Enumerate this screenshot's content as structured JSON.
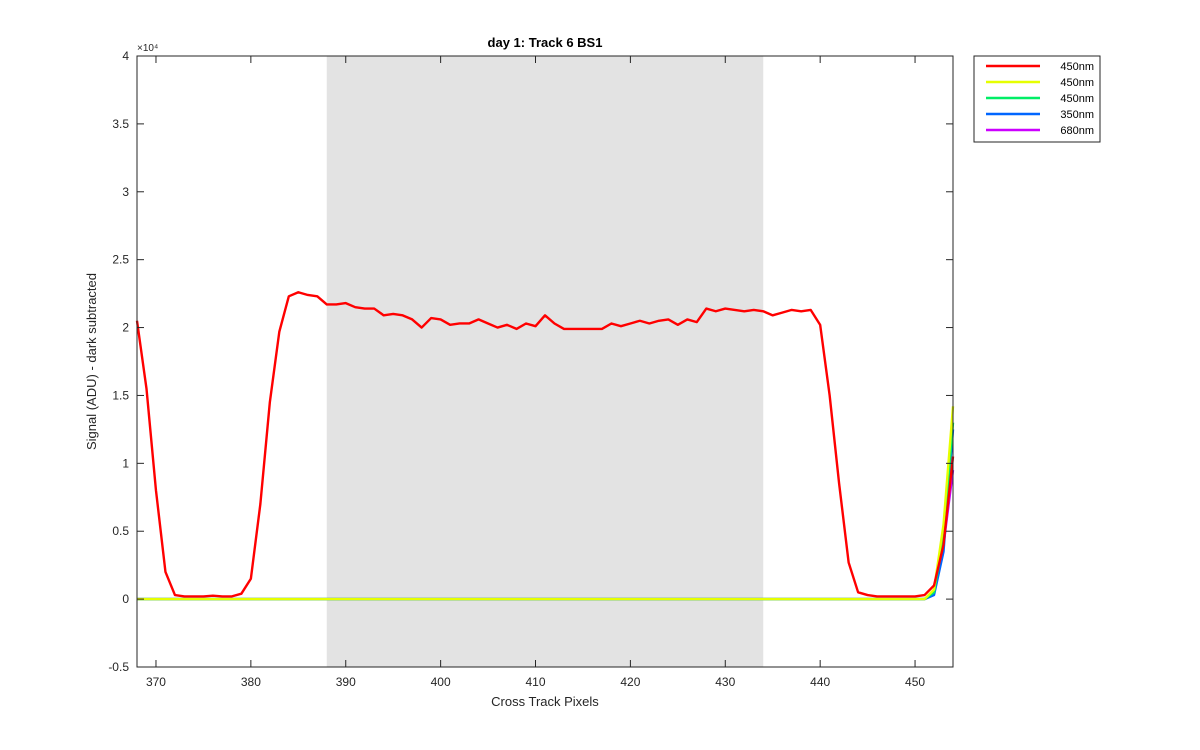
{
  "chart_data": {
    "type": "line",
    "title": "day 1: Track 6  BS1",
    "xlabel": "Cross Track Pixels",
    "ylabel": "Signal (ADU) - dark subtracted",
    "y_exponent_label": "×10⁴",
    "y_scale_factor": 10000,
    "xlim": [
      368,
      454
    ],
    "ylim": [
      -0.5,
      4
    ],
    "x_ticks": [
      370,
      380,
      390,
      400,
      410,
      420,
      430,
      440,
      450
    ],
    "y_ticks": [
      -0.5,
      0,
      0.5,
      1,
      1.5,
      2,
      2.5,
      3,
      3.5,
      4
    ],
    "y_tick_labels": [
      "-0.5",
      "0",
      "0.5",
      "1",
      "1.5",
      "2",
      "2.5",
      "3",
      "3.5",
      "4"
    ],
    "shaded_region": {
      "x_start": 388,
      "x_end": 434,
      "color": "#e3e3e3"
    },
    "grid": false,
    "legend_position": "outside-top-right",
    "series": [
      {
        "name": "450nm",
        "color": "#ff0000",
        "x": [
          368,
          369,
          370,
          371,
          372,
          373,
          374,
          375,
          376,
          377,
          378,
          379,
          380,
          381,
          382,
          383,
          384,
          385,
          386,
          387,
          388,
          389,
          390,
          391,
          392,
          393,
          394,
          395,
          396,
          397,
          398,
          399,
          400,
          401,
          402,
          403,
          404,
          405,
          406,
          407,
          408,
          409,
          410,
          411,
          412,
          413,
          414,
          415,
          416,
          417,
          418,
          419,
          420,
          421,
          422,
          423,
          424,
          425,
          426,
          427,
          428,
          429,
          430,
          431,
          432,
          433,
          434,
          435,
          436,
          437,
          438,
          439,
          440,
          441,
          442,
          443,
          444,
          445,
          446,
          447,
          448,
          449,
          450,
          451,
          452,
          453,
          454
        ],
        "y": [
          2.05,
          1.55,
          0.8,
          0.2,
          0.03,
          0.02,
          0.02,
          0.02,
          0.025,
          0.02,
          0.02,
          0.04,
          0.15,
          0.7,
          1.45,
          1.97,
          2.23,
          2.26,
          2.24,
          2.23,
          2.17,
          2.17,
          2.18,
          2.15,
          2.14,
          2.14,
          2.09,
          2.1,
          2.09,
          2.06,
          2.0,
          2.07,
          2.06,
          2.02,
          2.03,
          2.03,
          2.06,
          2.03,
          2.0,
          2.02,
          1.99,
          2.03,
          2.01,
          2.09,
          2.03,
          1.99,
          1.99,
          1.99,
          1.99,
          1.99,
          2.03,
          2.01,
          2.03,
          2.05,
          2.03,
          2.05,
          2.06,
          2.02,
          2.06,
          2.04,
          2.14,
          2.12,
          2.14,
          2.13,
          2.12,
          2.13,
          2.12,
          2.09,
          2.11,
          2.13,
          2.12,
          2.13,
          2.02,
          1.5,
          0.85,
          0.27,
          0.05,
          0.03,
          0.02,
          0.02,
          0.02,
          0.02,
          0.02,
          0.03,
          0.1,
          0.4,
          1.05
        ]
      },
      {
        "name": "450nm",
        "color": "#e6ff00",
        "x": [
          368,
          380,
          390,
          400,
          410,
          420,
          430,
          440,
          450,
          451,
          452,
          453,
          454
        ],
        "y": [
          0,
          0,
          0,
          0,
          0,
          0,
          0,
          0,
          0,
          0,
          0.07,
          0.55,
          1.42
        ]
      },
      {
        "name": "450nm",
        "color": "#00ee66",
        "x": [
          368,
          380,
          390,
          400,
          410,
          420,
          430,
          440,
          450,
          451,
          452,
          453,
          454
        ],
        "y": [
          0,
          0,
          0,
          0,
          0,
          0,
          0,
          0,
          0,
          0,
          0.05,
          0.45,
          1.3
        ]
      },
      {
        "name": "350nm",
        "color": "#0066ff",
        "x": [
          368,
          380,
          390,
          400,
          410,
          420,
          430,
          440,
          450,
          451,
          452,
          453,
          454
        ],
        "y": [
          0,
          0,
          0,
          0,
          0,
          0,
          0,
          0,
          0,
          0,
          0.03,
          0.35,
          1.25
        ]
      },
      {
        "name": "680nm",
        "color": "#cc00ff",
        "x": [
          368,
          380,
          390,
          400,
          410,
          420,
          430,
          440,
          450,
          451,
          452,
          453,
          454
        ],
        "y": [
          0,
          0,
          0,
          0,
          0,
          0,
          0,
          0,
          0,
          0,
          0.05,
          0.4,
          0.95
        ]
      }
    ]
  }
}
